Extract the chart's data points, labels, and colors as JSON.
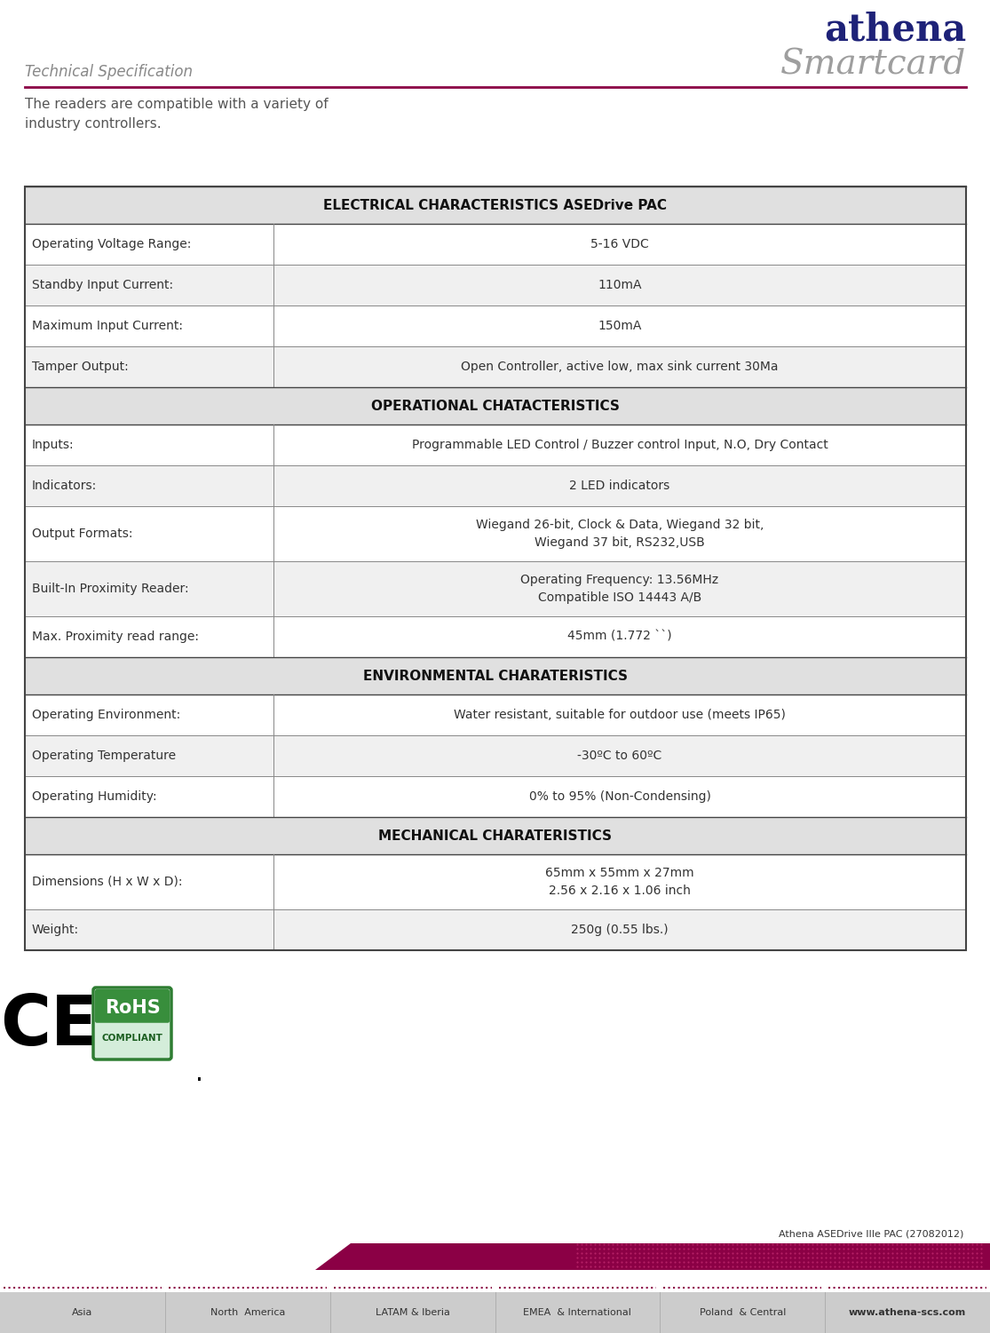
{
  "title": "Technical Specification",
  "logo_top": "athena",
  "logo_bottom": "Smartcard",
  "logo_color_top": "#1e2278",
  "logo_color_bottom": "#9e9e9e",
  "header_line_color": "#8b0045",
  "intro_text": "The readers are compatible with a variety of\nindustry controllers.",
  "table_border_color": "#555555",
  "header_bg_color": "#e0e0e0",
  "row_bg_alt": "#f0f0f0",
  "row_bg_white": "#ffffff",
  "sections": [
    {
      "type": "header",
      "text": "ELECTRICAL CHARACTERISTICS ASEDrive PAC"
    },
    {
      "type": "row",
      "label": "Operating Voltage Range:",
      "value": "5-16 VDC",
      "multiline": false
    },
    {
      "type": "row",
      "label": "Standby Input Current:",
      "value": "110mA",
      "multiline": false
    },
    {
      "type": "row",
      "label": "Maximum Input Current:",
      "value": "150mA",
      "multiline": false
    },
    {
      "type": "row",
      "label": "Tamper Output:",
      "value": "Open Controller, active low, max sink current 30Ma",
      "multiline": false
    },
    {
      "type": "header",
      "text": "OPERATIONAL CHATACTERISTICS"
    },
    {
      "type": "row",
      "label": "Inputs:",
      "value": "Programmable LED Control / Buzzer control Input, N.O, Dry Contact",
      "multiline": false
    },
    {
      "type": "row",
      "label": "Indicators:",
      "value": "2 LED indicators",
      "multiline": false
    },
    {
      "type": "row",
      "label": "Output Formats:",
      "value": "Wiegand 26-bit, Clock & Data, Wiegand 32 bit,\nWiegand 37 bit, RS232,USB",
      "multiline": true
    },
    {
      "type": "row",
      "label": "Built-In Proximity Reader:",
      "value": "Operating Frequency: 13.56MHz\nCompatible ISO 14443 A/B",
      "multiline": true
    },
    {
      "type": "row",
      "label": "Max. Proximity read range:",
      "value": "45mm (1.772 ``)",
      "multiline": false
    },
    {
      "type": "header",
      "text": "ENVIRONMENTAL CHARATERISTICS"
    },
    {
      "type": "row",
      "label": "Operating Environment:",
      "value": "Water resistant, suitable for outdoor use (meets IP65)",
      "multiline": false
    },
    {
      "type": "row",
      "label": "Operating Temperature",
      "value": "-30ºC to 60ºC",
      "multiline": false
    },
    {
      "type": "row",
      "label": "Operating Humidity:",
      "value": "0% to 95% (Non-Condensing)",
      "multiline": false
    },
    {
      "type": "header",
      "text": "MECHANICAL CHARATERISTICS"
    },
    {
      "type": "row",
      "label": "Dimensions (H x W x D):",
      "value": "65mm x 55mm x 27mm\n2.56 x 2.16 x 1.06 inch",
      "multiline": true
    },
    {
      "type": "row",
      "label": "Weight:",
      "value": "250g (0.55 lbs.)",
      "multiline": false
    }
  ],
  "footer_doc_ref": "Athena ASEDrive IIIe PAC (27082012)",
  "footer_regions": [
    "Asia",
    "North  America",
    "LATAM & Iberia",
    "EMEA  & International",
    "Poland  & Central",
    "www.athena-scs.com"
  ],
  "footer_bar_color": "#8b0045",
  "footer_gray_color": "#cccccc"
}
